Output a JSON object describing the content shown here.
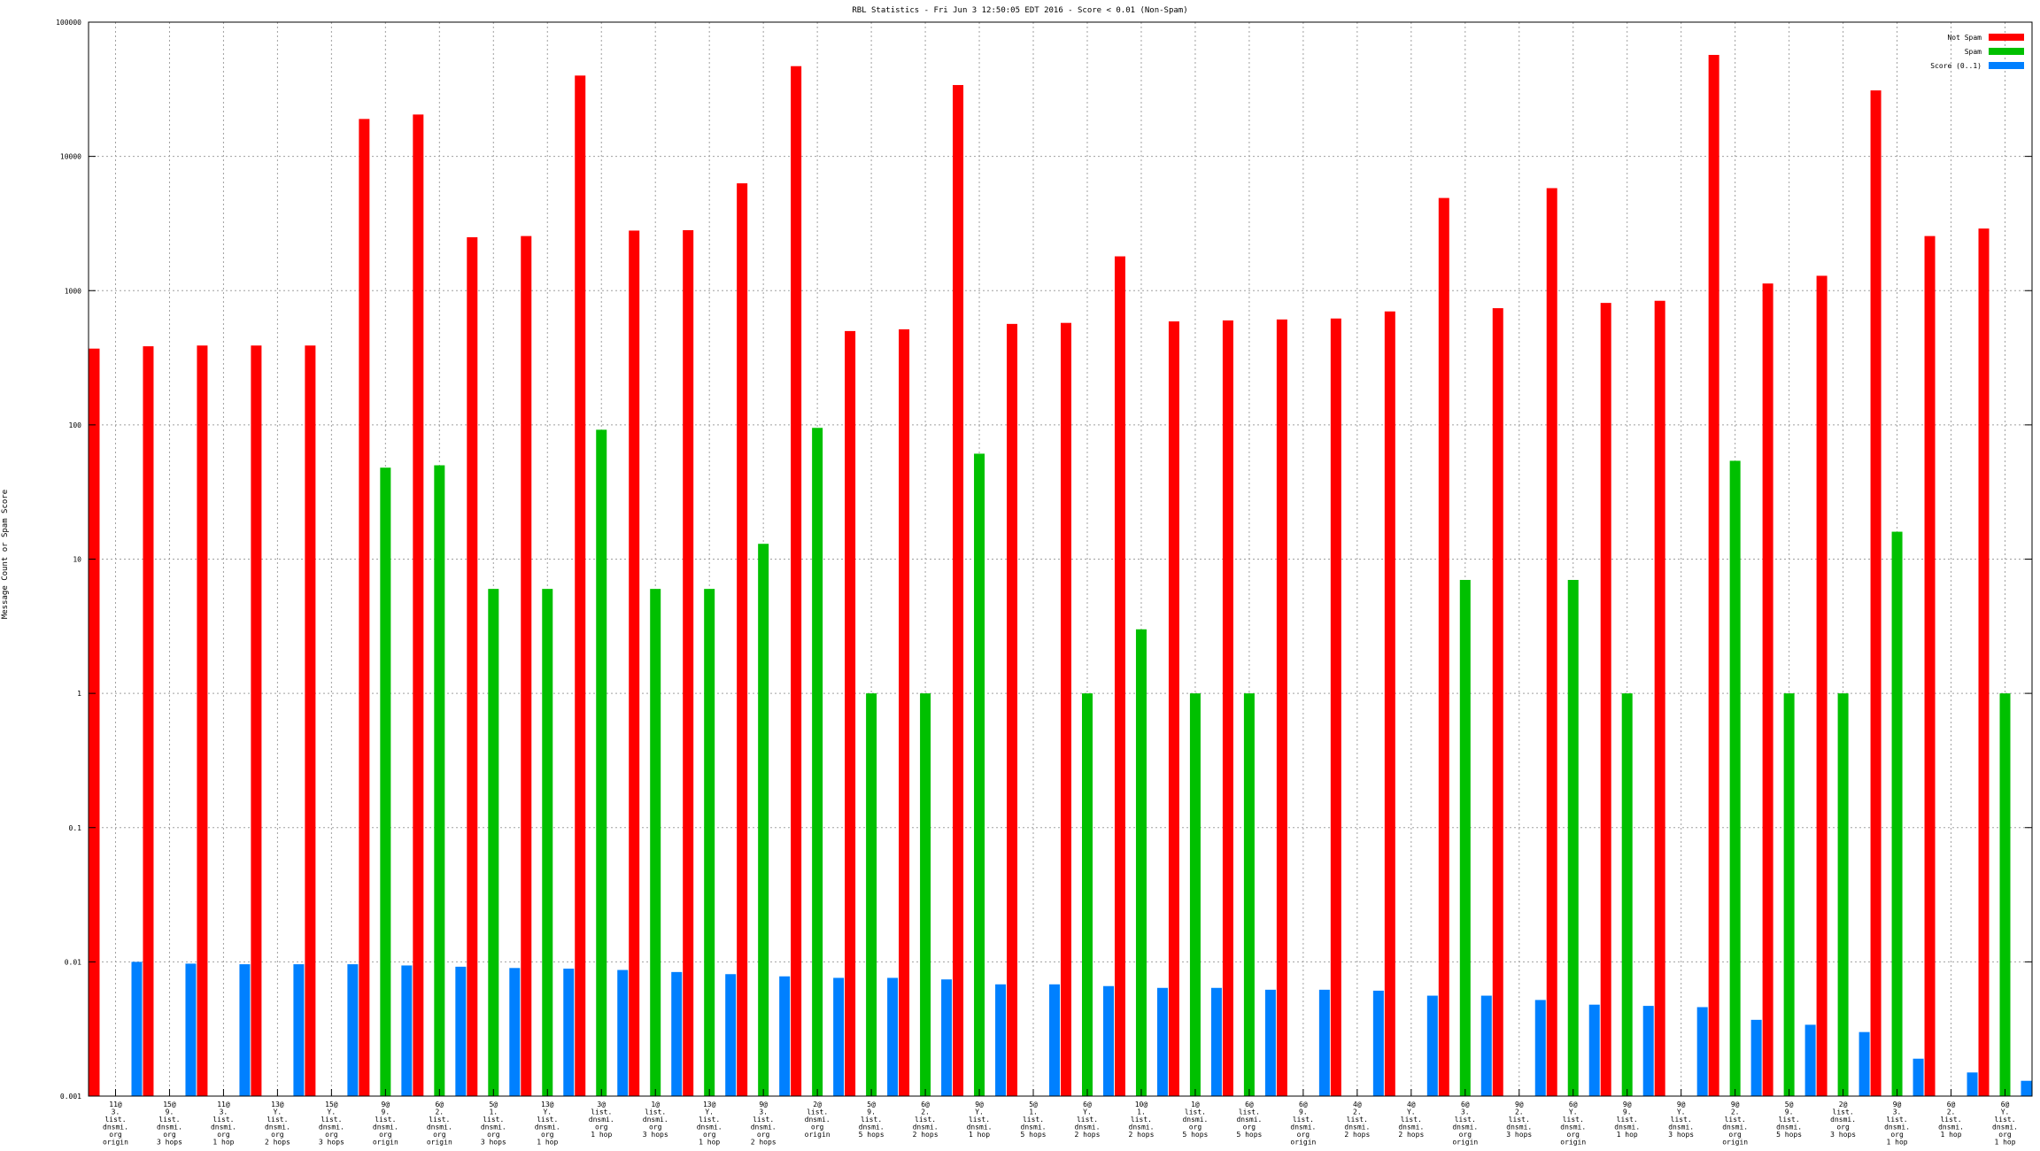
{
  "chart_data": {
    "type": "bar",
    "title": "RBL Statistics - Fri Jun  3 12:50:05 EDT 2016 - Score < 0.01 (Non-Spam)",
    "xlabel": "",
    "ylabel": "Message Count or Spam Score",
    "yscale": "log",
    "ylim": [
      0.001,
      100000
    ],
    "yticks": [
      "0.001",
      "0.01",
      "0.1",
      "1",
      "10",
      "100",
      "1000",
      "10000",
      "100000"
    ],
    "grid": true,
    "legend_position": "top-right",
    "colors": {
      "Not Spam": "#ff0000",
      "Spam": "#00c000",
      "Score (0..1)": "#0080ff"
    },
    "categories": [
      [
        "11@",
        "3.",
        "list.",
        "dnsmi.",
        "org",
        "origin"
      ],
      [
        "15@",
        "9.",
        "list.",
        "dnsmi.",
        "org",
        "3 hops"
      ],
      [
        "11@",
        "3.",
        "list.",
        "dnsmi.",
        "org",
        "1 hop"
      ],
      [
        "13@",
        "Y.",
        "list.",
        "dnsmi.",
        "org",
        "2 hops"
      ],
      [
        "15@",
        "Y.",
        "list.",
        "dnsmi.",
        "org",
        "3 hops"
      ],
      [
        "9@",
        "9.",
        "list.",
        "dnsmi.",
        "org",
        "origin"
      ],
      [
        "6@",
        "2.",
        "list.",
        "dnsmi.",
        "org",
        "origin"
      ],
      [
        "5@",
        "1.",
        "list.",
        "dnsmi.",
        "org",
        "3 hops"
      ],
      [
        "13@",
        "Y.",
        "list.",
        "dnsmi.",
        "org",
        "1 hop"
      ],
      [
        "3@",
        "list.",
        "dnsmi.",
        "org",
        "1 hop"
      ],
      [
        "1@",
        "list.",
        "dnsmi.",
        "org",
        "3 hops"
      ],
      [
        "13@",
        "Y.",
        "list.",
        "dnsmi.",
        "org",
        "1 hop"
      ],
      [
        "9@",
        "3.",
        "list.",
        "dnsmi.",
        "org",
        "2 hops"
      ],
      [
        "2@",
        "list.",
        "dnsmi.",
        "org",
        "origin"
      ],
      [
        "5@",
        "9.",
        "list.",
        "dnsmi.",
        "5 hops"
      ],
      [
        "6@",
        "2.",
        "list.",
        "dnsmi.",
        "2 hops"
      ],
      [
        "9@",
        "Y.",
        "list.",
        "dnsmi.",
        "1 hop"
      ],
      [
        "5@",
        "1.",
        "list.",
        "dnsmi.",
        "5 hops"
      ],
      [
        "6@",
        "Y.",
        "list.",
        "dnsmi.",
        "2 hops"
      ],
      [
        "10@",
        "1.",
        "list.",
        "dnsmi.",
        "2 hops"
      ],
      [
        "1@",
        "list.",
        "dnsmi.",
        "org",
        "5 hops"
      ],
      [
        "6@",
        "list.",
        "dnsmi.",
        "org",
        "5 hops"
      ],
      [
        "6@",
        "9.",
        "list.",
        "dnsmi.",
        "org",
        "origin"
      ],
      [
        "4@",
        "2.",
        "list.",
        "dnsmi.",
        "2 hops"
      ],
      [
        "4@",
        "Y.",
        "list.",
        "dnsmi.",
        "2 hops"
      ],
      [
        "6@",
        "3.",
        "list.",
        "dnsmi.",
        "org",
        "origin"
      ],
      [
        "9@",
        "2.",
        "list.",
        "dnsmi.",
        "3 hops"
      ],
      [
        "6@",
        "Y.",
        "list.",
        "dnsmi.",
        "org",
        "origin"
      ],
      [
        "9@",
        "9.",
        "list.",
        "dnsmi.",
        "1 hop"
      ],
      [
        "9@",
        "Y.",
        "list.",
        "dnsmi.",
        "3 hops"
      ],
      [
        "9@",
        "2.",
        "list.",
        "dnsmi.",
        "org",
        "origin"
      ],
      [
        "5@",
        "9.",
        "list.",
        "dnsmi.",
        "5 hops"
      ],
      [
        "2@",
        "list.",
        "dnsmi.",
        "org",
        "3 hops"
      ],
      [
        "9@",
        "3.",
        "list.",
        "dnsmi.",
        "org",
        "1 hop"
      ],
      [
        "6@",
        "2.",
        "list.",
        "dnsmi.",
        "1 hop"
      ],
      [
        "6@",
        "Y.",
        "list.",
        "dnsmi.",
        "org",
        "1 hop"
      ]
    ],
    "series": [
      {
        "name": "Not Spam",
        "values": [
          370,
          385,
          390,
          390,
          390,
          19000,
          20500,
          2500,
          2550,
          40000,
          2800,
          2820,
          6300,
          47000,
          500,
          515,
          34000,
          565,
          575,
          1800,
          590,
          600,
          610,
          620,
          700,
          4900,
          740,
          5800,
          810,
          840,
          57000,
          1130,
          1290,
          31000,
          2550,
          2900
        ]
      },
      {
        "name": "Spam",
        "values": [
          null,
          null,
          null,
          null,
          null,
          48,
          50,
          6,
          6,
          92,
          6,
          6,
          13,
          95,
          1,
          1,
          61,
          null,
          1,
          3,
          1,
          1,
          null,
          null,
          null,
          7,
          null,
          7,
          1,
          null,
          54,
          1,
          1,
          16,
          null,
          1
        ]
      },
      {
        "name": "Score (0..1)",
        "values": [
          0.01,
          0.0097,
          0.0096,
          0.0096,
          0.0096,
          0.0094,
          0.0092,
          0.009,
          0.0089,
          0.0087,
          0.0084,
          0.0081,
          0.0078,
          0.0076,
          0.0076,
          0.0074,
          0.0068,
          0.0068,
          0.0066,
          0.0064,
          0.0064,
          0.0062,
          0.0062,
          0.0061,
          0.0056,
          0.0056,
          0.0052,
          0.0048,
          0.0047,
          0.0046,
          0.0037,
          0.0034,
          0.003,
          0.0019,
          0.0015,
          0.0013
        ]
      }
    ]
  }
}
